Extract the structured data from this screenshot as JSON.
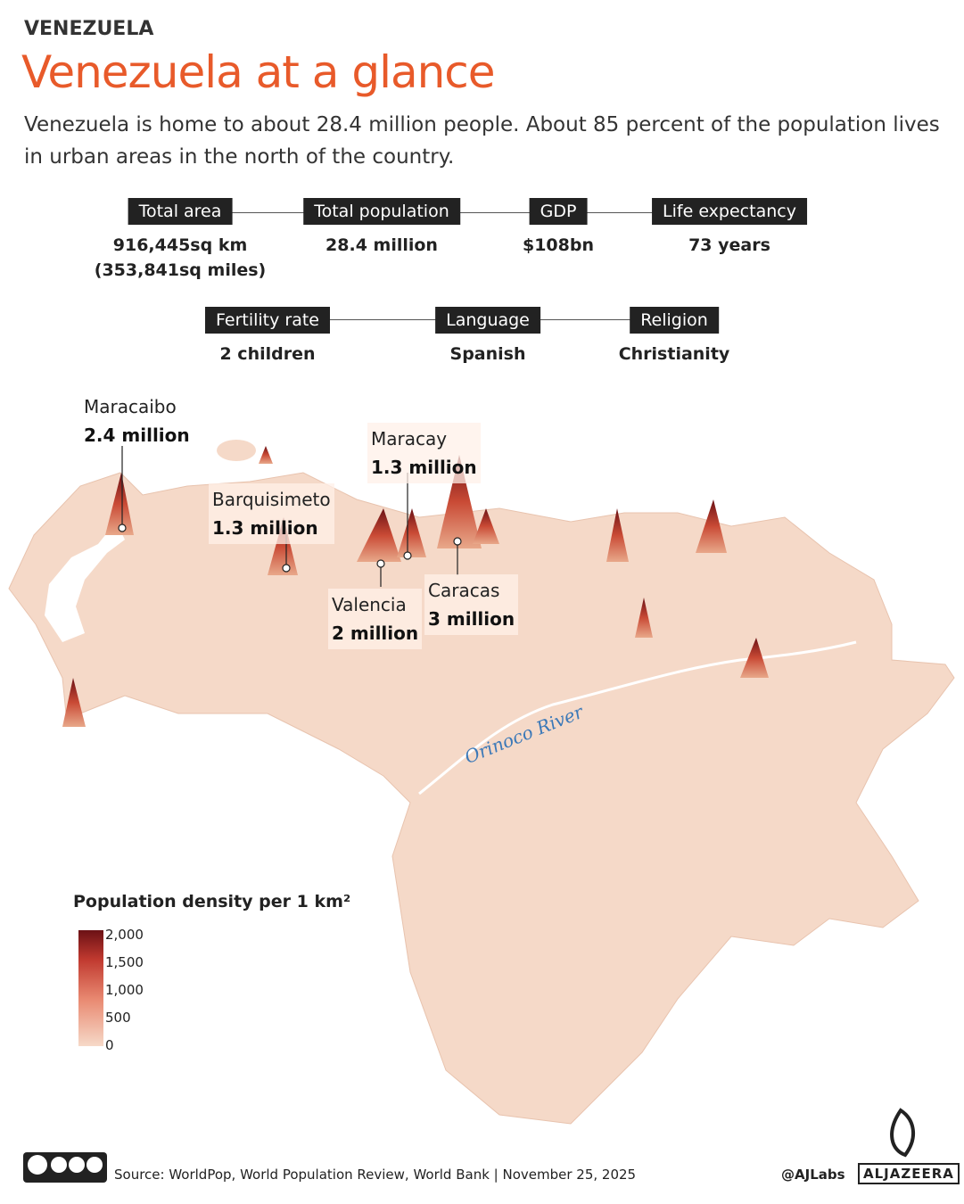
{
  "header": {
    "kicker": "VENEZUELA",
    "title": "Venezuela at a glance",
    "subtitle": "Venezuela is home to about 28.4 million people. About 85 percent of the population lives in urban areas in the north of the country."
  },
  "facts": [
    {
      "label": "Total area",
      "value": "916,445sq km",
      "value_line2": "(353,841sq miles)"
    },
    {
      "label": "Total population",
      "value": "28.4 million"
    },
    {
      "label": "GDP",
      "value": "$108bn"
    },
    {
      "label": "Life expectancy",
      "value": "73 years"
    },
    {
      "label": "Fertility rate",
      "value": "2 children"
    },
    {
      "label": "Language",
      "value": "Spanish"
    },
    {
      "label": "Religion",
      "value": "Christianity"
    }
  ],
  "cities": [
    {
      "name": "Maracaibo",
      "population": "2.4 million"
    },
    {
      "name": "Maracay",
      "population": "1.3 million"
    },
    {
      "name": "Barquisimeto",
      "population": "1.3 million"
    },
    {
      "name": "Valencia",
      "population": "2 million"
    },
    {
      "name": "Caracas",
      "population": "3 million"
    }
  ],
  "river": "Orinoco River",
  "legend": {
    "title": "Population density per 1 km²",
    "ticks": [
      "2,000",
      "1,500",
      "1,000",
      "500",
      "0"
    ]
  },
  "footer": {
    "license": [
      "BY",
      "NC",
      "SA"
    ],
    "source": "Source:  WorldPop, World Population Review, World Bank | November 25, 2025",
    "handle": "@AJLabs",
    "logo": "ALJAZEERA"
  }
}
